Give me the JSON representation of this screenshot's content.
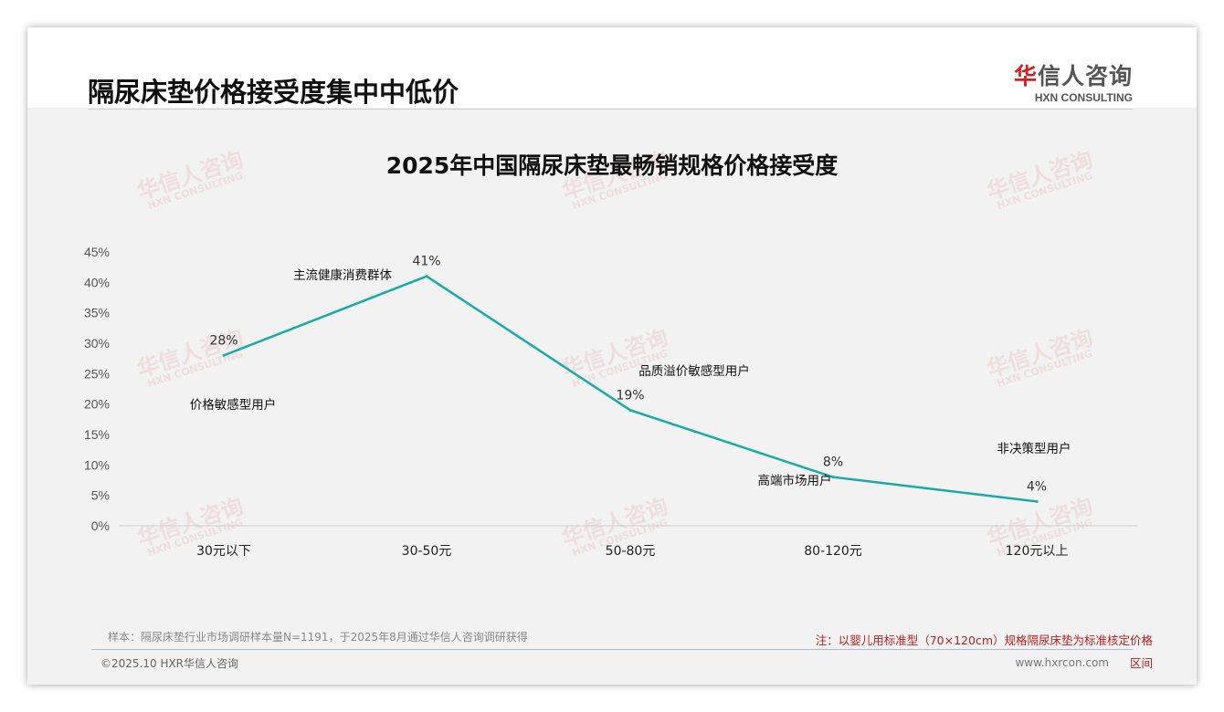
{
  "header": {
    "title": "隔尿床垫价格接受度集中中低价",
    "logo_cn_red": "华",
    "logo_cn": "信人咨询",
    "logo_en": "HXN CONSULTING"
  },
  "watermark": {
    "cn": "华信人咨询",
    "en": "HXN CONSULTING"
  },
  "chart_data": {
    "type": "line",
    "title": "2025年中国隔尿床垫最畅销规格价格接受度",
    "categories": [
      "30元以下",
      "30-50元",
      "50-80元",
      "80-120元",
      "120元以上"
    ],
    "values": [
      28,
      41,
      19,
      8,
      4
    ],
    "data_labels": [
      "28%",
      "41%",
      "19%",
      "8%",
      "4%"
    ],
    "annotations": [
      "价格敏感型用户",
      "主流健康消费群体",
      "品质溢价敏感型用户",
      "高端市场用户",
      "非决策型用户"
    ],
    "yticks": [
      "0%",
      "5%",
      "10%",
      "15%",
      "20%",
      "25%",
      "30%",
      "35%",
      "40%",
      "45%"
    ],
    "ylim": [
      0,
      45
    ],
    "color": "#1aaba8",
    "grid": false
  },
  "footer": {
    "source": "样本：隔尿床垫行业市场调研样本量N=1191，于2025年8月通过华信人咨询调研获得",
    "note": "注：以婴儿用标准型（70×120cm）规格隔尿床垫为标准核定价格",
    "note2": "区间",
    "copyright": "©2025.10 HXR华信人咨询",
    "website": "www.hxrcon.com"
  }
}
